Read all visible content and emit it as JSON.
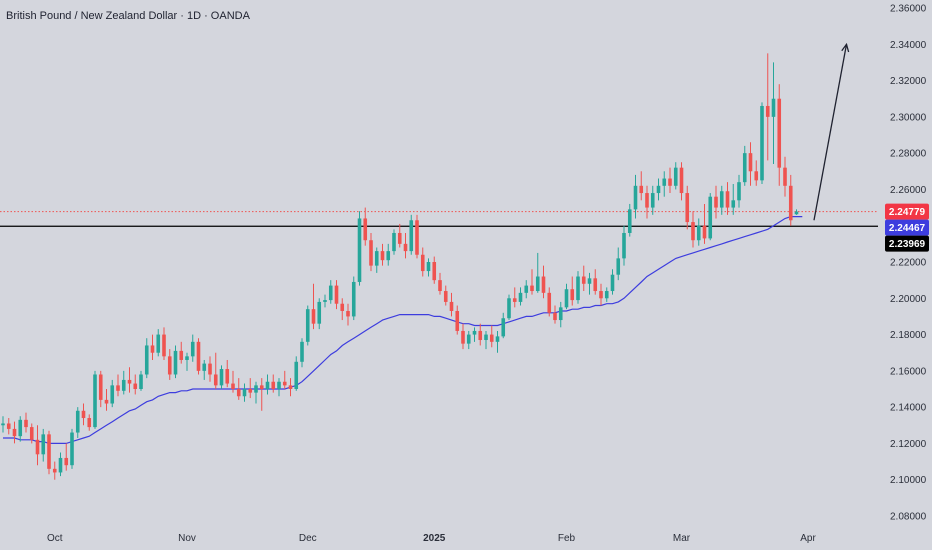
{
  "header": {
    "title": "British Pound / New Zealand Dollar · 1D · OANDA"
  },
  "colors": {
    "background": "#d4d6dd",
    "bull": "#26a69a",
    "bear": "#ef5350",
    "ma": "#3d3dde",
    "current_price_line": "#ef5350",
    "support_line": "#000000",
    "arrow": "#1f2230"
  },
  "chart_data": {
    "type": "candlestick",
    "title": "British Pound / New Zealand Dollar · 1D · OANDA",
    "ylim": [
      2.07,
      2.36
    ],
    "yticks": [
      "2.36000",
      "2.34000",
      "2.32000",
      "2.30000",
      "2.28000",
      "2.26000",
      "2.24000",
      "2.22000",
      "2.20000",
      "2.18000",
      "2.16000",
      "2.14000",
      "2.12000",
      "2.10000",
      "2.08000"
    ],
    "xticks": [
      {
        "label": "Oct",
        "bold": false,
        "index": 9
      },
      {
        "label": "Nov",
        "bold": false,
        "index": 32
      },
      {
        "label": "Dec",
        "bold": false,
        "index": 53
      },
      {
        "label": "2025",
        "bold": true,
        "index": 75
      },
      {
        "label": "Feb",
        "bold": false,
        "index": 98
      },
      {
        "label": "Mar",
        "bold": false,
        "index": 118
      },
      {
        "label": "Apr",
        "bold": false,
        "index": 140
      }
    ],
    "ohlc": [
      [
        2.13,
        2.135,
        2.126,
        2.131
      ],
      [
        2.131,
        2.134,
        2.125,
        2.128
      ],
      [
        2.128,
        2.132,
        2.12,
        2.124
      ],
      [
        2.124,
        2.135,
        2.121,
        2.133
      ],
      [
        2.133,
        2.137,
        2.126,
        2.129
      ],
      [
        2.129,
        2.131,
        2.12,
        2.122
      ],
      [
        2.122,
        2.13,
        2.108,
        2.114
      ],
      [
        2.114,
        2.128,
        2.11,
        2.125
      ],
      [
        2.125,
        2.127,
        2.103,
        2.106
      ],
      [
        2.106,
        2.11,
        2.1,
        2.104
      ],
      [
        2.104,
        2.115,
        2.102,
        2.112
      ],
      [
        2.112,
        2.12,
        2.105,
        2.108
      ],
      [
        2.108,
        2.128,
        2.106,
        2.126
      ],
      [
        2.126,
        2.14,
        2.123,
        2.138
      ],
      [
        2.138,
        2.142,
        2.13,
        2.134
      ],
      [
        2.134,
        2.136,
        2.127,
        2.129
      ],
      [
        2.129,
        2.16,
        2.128,
        2.158
      ],
      [
        2.158,
        2.16,
        2.14,
        2.144
      ],
      [
        2.144,
        2.15,
        2.138,
        2.142
      ],
      [
        2.142,
        2.155,
        2.14,
        2.152
      ],
      [
        2.152,
        2.158,
        2.146,
        2.149
      ],
      [
        2.149,
        2.16,
        2.147,
        2.155
      ],
      [
        2.155,
        2.162,
        2.148,
        2.153
      ],
      [
        2.153,
        2.158,
        2.147,
        2.15
      ],
      [
        2.15,
        2.16,
        2.149,
        2.158
      ],
      [
        2.158,
        2.178,
        2.156,
        2.174
      ],
      [
        2.174,
        2.18,
        2.166,
        2.17
      ],
      [
        2.17,
        2.183,
        2.168,
        2.18
      ],
      [
        2.18,
        2.184,
        2.166,
        2.168
      ],
      [
        2.168,
        2.172,
        2.155,
        2.158
      ],
      [
        2.158,
        2.174,
        2.156,
        2.171
      ],
      [
        2.171,
        2.176,
        2.164,
        2.166
      ],
      [
        2.166,
        2.17,
        2.16,
        2.168
      ],
      [
        2.168,
        2.18,
        2.165,
        2.176
      ],
      [
        2.176,
        2.178,
        2.158,
        2.16
      ],
      [
        2.16,
        2.166,
        2.155,
        2.164
      ],
      [
        2.164,
        2.168,
        2.154,
        2.158
      ],
      [
        2.158,
        2.17,
        2.15,
        2.152
      ],
      [
        2.152,
        2.163,
        2.15,
        2.161
      ],
      [
        2.161,
        2.166,
        2.151,
        2.153
      ],
      [
        2.153,
        2.16,
        2.148,
        2.15
      ],
      [
        2.15,
        2.156,
        2.144,
        2.146
      ],
      [
        2.146,
        2.153,
        2.143,
        2.15
      ],
      [
        2.15,
        2.156,
        2.145,
        2.148
      ],
      [
        2.148,
        2.154,
        2.142,
        2.152
      ],
      [
        2.152,
        2.156,
        2.138,
        2.15
      ],
      [
        2.15,
        2.158,
        2.147,
        2.154
      ],
      [
        2.154,
        2.158,
        2.148,
        2.15
      ],
      [
        2.15,
        2.156,
        2.146,
        2.154
      ],
      [
        2.154,
        2.16,
        2.15,
        2.152
      ],
      [
        2.152,
        2.156,
        2.146,
        2.15
      ],
      [
        2.15,
        2.168,
        2.149,
        2.165
      ],
      [
        2.165,
        2.178,
        2.162,
        2.176
      ],
      [
        2.176,
        2.196,
        2.174,
        2.194
      ],
      [
        2.194,
        2.208,
        2.183,
        2.186
      ],
      [
        2.186,
        2.2,
        2.183,
        2.198
      ],
      [
        2.198,
        2.202,
        2.195,
        2.199
      ],
      [
        2.199,
        2.21,
        2.197,
        2.207
      ],
      [
        2.207,
        2.21,
        2.194,
        2.197
      ],
      [
        2.197,
        2.2,
        2.188,
        2.193
      ],
      [
        2.193,
        2.197,
        2.185,
        2.19
      ],
      [
        2.19,
        2.212,
        2.188,
        2.209
      ],
      [
        2.209,
        2.248,
        2.207,
        2.244
      ],
      [
        2.244,
        2.25,
        2.229,
        2.232
      ],
      [
        2.232,
        2.236,
        2.215,
        2.218
      ],
      [
        2.218,
        2.228,
        2.214,
        2.226
      ],
      [
        2.226,
        2.23,
        2.218,
        2.221
      ],
      [
        2.221,
        2.23,
        2.218,
        2.226
      ],
      [
        2.226,
        2.238,
        2.224,
        2.236
      ],
      [
        2.236,
        2.241,
        2.228,
        2.23
      ],
      [
        2.23,
        2.236,
        2.222,
        2.226
      ],
      [
        2.226,
        2.246,
        2.224,
        2.243
      ],
      [
        2.243,
        2.246,
        2.222,
        2.224
      ],
      [
        2.224,
        2.228,
        2.212,
        2.215
      ],
      [
        2.215,
        2.222,
        2.212,
        2.22
      ],
      [
        2.22,
        2.223,
        2.208,
        2.21
      ],
      [
        2.21,
        2.214,
        2.202,
        2.204
      ],
      [
        2.204,
        2.207,
        2.196,
        2.198
      ],
      [
        2.198,
        2.203,
        2.19,
        2.193
      ],
      [
        2.193,
        2.196,
        2.18,
        2.182
      ],
      [
        2.182,
        2.186,
        2.172,
        2.175
      ],
      [
        2.175,
        2.182,
        2.172,
        2.18
      ],
      [
        2.18,
        2.184,
        2.176,
        2.182
      ],
      [
        2.182,
        2.186,
        2.174,
        2.177
      ],
      [
        2.177,
        2.182,
        2.172,
        2.18
      ],
      [
        2.18,
        2.185,
        2.173,
        2.176
      ],
      [
        2.176,
        2.182,
        2.17,
        2.179
      ],
      [
        2.179,
        2.192,
        2.178,
        2.189
      ],
      [
        2.189,
        2.202,
        2.188,
        2.2
      ],
      [
        2.2,
        2.206,
        2.195,
        2.198
      ],
      [
        2.198,
        2.206,
        2.196,
        2.203
      ],
      [
        2.203,
        2.21,
        2.2,
        2.207
      ],
      [
        2.207,
        2.216,
        2.202,
        2.204
      ],
      [
        2.204,
        2.225,
        2.203,
        2.212
      ],
      [
        2.212,
        2.218,
        2.2,
        2.203
      ],
      [
        2.203,
        2.206,
        2.19,
        2.192
      ],
      [
        2.192,
        2.196,
        2.186,
        2.188
      ],
      [
        2.188,
        2.198,
        2.184,
        2.195
      ],
      [
        2.195,
        2.208,
        2.194,
        2.205
      ],
      [
        2.205,
        2.212,
        2.196,
        2.199
      ],
      [
        2.199,
        2.215,
        2.197,
        2.212
      ],
      [
        2.212,
        2.218,
        2.204,
        2.208
      ],
      [
        2.208,
        2.214,
        2.202,
        2.211
      ],
      [
        2.211,
        2.216,
        2.202,
        2.204
      ],
      [
        2.204,
        2.208,
        2.196,
        2.2
      ],
      [
        2.2,
        2.206,
        2.198,
        2.204
      ],
      [
        2.204,
        2.216,
        2.202,
        2.213
      ],
      [
        2.213,
        2.228,
        2.21,
        2.222
      ],
      [
        2.222,
        2.24,
        2.218,
        2.236
      ],
      [
        2.236,
        2.252,
        2.234,
        2.249
      ],
      [
        2.249,
        2.268,
        2.244,
        2.262
      ],
      [
        2.262,
        2.27,
        2.254,
        2.258
      ],
      [
        2.258,
        2.262,
        2.244,
        2.25
      ],
      [
        2.25,
        2.262,
        2.246,
        2.258
      ],
      [
        2.258,
        2.266,
        2.254,
        2.262
      ],
      [
        2.262,
        2.27,
        2.256,
        2.266
      ],
      [
        2.266,
        2.272,
        2.258,
        2.262
      ],
      [
        2.262,
        2.275,
        2.26,
        2.272
      ],
      [
        2.272,
        2.275,
        2.254,
        2.258
      ],
      [
        2.258,
        2.262,
        2.238,
        2.242
      ],
      [
        2.242,
        2.248,
        2.228,
        2.232
      ],
      [
        2.232,
        2.244,
        2.229,
        2.24
      ],
      [
        2.24,
        2.252,
        2.23,
        2.233
      ],
      [
        2.233,
        2.258,
        2.232,
        2.256
      ],
      [
        2.256,
        2.262,
        2.244,
        2.25
      ],
      [
        2.25,
        2.262,
        2.246,
        2.259
      ],
      [
        2.259,
        2.264,
        2.246,
        2.25
      ],
      [
        2.25,
        2.263,
        2.246,
        2.254
      ],
      [
        2.254,
        2.268,
        2.25,
        2.264
      ],
      [
        2.264,
        2.284,
        2.262,
        2.28
      ],
      [
        2.28,
        2.286,
        2.262,
        2.27
      ],
      [
        2.27,
        2.276,
        2.262,
        2.265
      ],
      [
        2.265,
        2.308,
        2.263,
        2.306
      ],
      [
        2.306,
        2.335,
        2.276,
        2.3
      ],
      [
        2.3,
        2.33,
        2.274,
        2.31
      ],
      [
        2.31,
        2.318,
        2.262,
        2.272
      ],
      [
        2.272,
        2.278,
        2.256,
        2.262
      ],
      [
        2.262,
        2.268,
        2.24,
        2.243
      ],
      [
        2.2463,
        2.249,
        2.246,
        2.2478
      ]
    ],
    "ma": [
      2.123,
      2.123,
      2.123,
      2.122,
      2.122,
      2.122,
      2.121,
      2.121,
      2.12,
      2.12,
      2.12,
      2.12,
      2.121,
      2.122,
      2.123,
      2.124,
      2.126,
      2.128,
      2.13,
      2.132,
      2.134,
      2.136,
      2.138,
      2.139,
      2.141,
      2.143,
      2.144,
      2.146,
      2.147,
      2.148,
      2.148,
      2.149,
      2.149,
      2.15,
      2.15,
      2.15,
      2.15,
      2.15,
      2.15,
      2.15,
      2.15,
      2.15,
      2.15,
      2.15,
      2.15,
      2.15,
      2.15,
      2.15,
      2.15,
      2.15,
      2.151,
      2.152,
      2.154,
      2.157,
      2.16,
      2.163,
      2.166,
      2.169,
      2.171,
      2.174,
      2.176,
      2.178,
      2.18,
      2.182,
      2.184,
      2.186,
      2.188,
      2.189,
      2.19,
      2.191,
      2.191,
      2.191,
      2.191,
      2.191,
      2.191,
      2.19,
      2.19,
      2.189,
      2.188,
      2.187,
      2.186,
      2.186,
      2.185,
      2.185,
      2.185,
      2.185,
      2.185,
      2.186,
      2.187,
      2.188,
      2.189,
      2.19,
      2.19,
      2.191,
      2.192,
      2.192,
      2.192,
      2.193,
      2.193,
      2.194,
      2.194,
      2.195,
      2.195,
      2.196,
      2.196,
      2.197,
      2.197,
      2.198,
      2.2,
      2.203,
      2.206,
      2.209,
      2.212,
      2.214,
      2.216,
      2.218,
      2.22,
      2.222,
      2.223,
      2.224,
      2.225,
      2.226,
      2.227,
      2.228,
      2.229,
      2.23,
      2.231,
      2.232,
      2.233,
      2.234,
      2.235,
      2.236,
      2.237,
      2.238,
      2.24,
      2.242,
      2.244,
      2.245,
      2.245,
      2.245
    ],
    "price_tags": [
      {
        "label": "2.24779",
        "value": 2.24779,
        "color": "#f23645",
        "text_color": "#ffffff"
      },
      {
        "label": "2.24467",
        "value": 2.24467,
        "color": "#3d3dde",
        "text_color": "#ffffff"
      },
      {
        "label": "2.23969",
        "value": 2.23969,
        "color": "#000000",
        "text_color": "#ffffff"
      }
    ],
    "horizontal_lines": [
      {
        "name": "support-line",
        "value": 2.2397,
        "color": "#000000",
        "style": "solid"
      },
      {
        "name": "current-price-line",
        "value": 2.24779,
        "color": "#ef5350",
        "style": "dotted"
      }
    ],
    "arrow": {
      "from": [
        140,
        2.243
      ],
      "to": [
        146,
        2.34
      ]
    }
  }
}
